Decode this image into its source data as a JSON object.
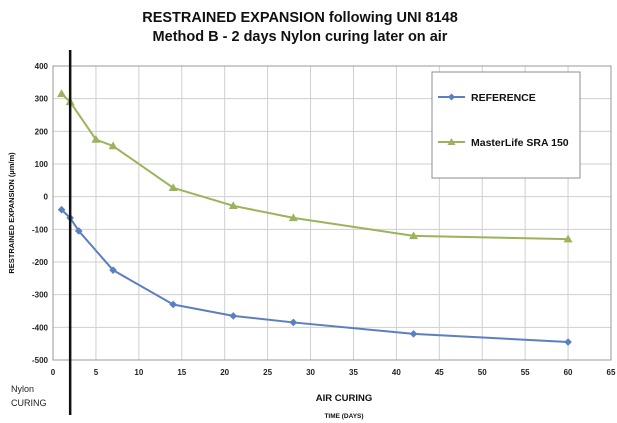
{
  "chart_data": {
    "type": "line",
    "title_line1": "RESTRAINED EXPANSION following   UNI 8148",
    "title_line2": "Method B - 2 days Nylon curing later on air",
    "ylabel": "RESTRAINED  EXPANSION (µm/m)",
    "xlabel": "AIR CURING",
    "xlabel_sub": "TIME (DAYS)",
    "curing_label_line1": "Nylon",
    "curing_label_line2": "CURING",
    "xlim": [
      0,
      65
    ],
    "ylim": [
      -500,
      400
    ],
    "xticks": [
      0,
      5,
      10,
      15,
      20,
      25,
      30,
      35,
      40,
      45,
      50,
      55,
      60,
      65
    ],
    "yticks": [
      -500,
      -400,
      -300,
      -200,
      -100,
      0,
      100,
      200,
      300,
      400
    ],
    "grid": true,
    "legend_position": "top-right",
    "curing_marker_x": 2,
    "series": [
      {
        "name": "REFERENCE",
        "color": "#5b7fc0",
        "marker": "diamond",
        "x": [
          1,
          2,
          3,
          7,
          14,
          21,
          28,
          42,
          60
        ],
        "y": [
          -40,
          -65,
          -105,
          -225,
          -330,
          -365,
          -385,
          -420,
          -445
        ]
      },
      {
        "name": "MasterLife SRA 150",
        "color": "#9bb35a",
        "marker": "triangle",
        "x": [
          1,
          2,
          5,
          7,
          14,
          21,
          28,
          42,
          60
        ],
        "y": [
          315,
          290,
          175,
          155,
          27,
          -28,
          -65,
          -120,
          -130
        ]
      }
    ]
  }
}
